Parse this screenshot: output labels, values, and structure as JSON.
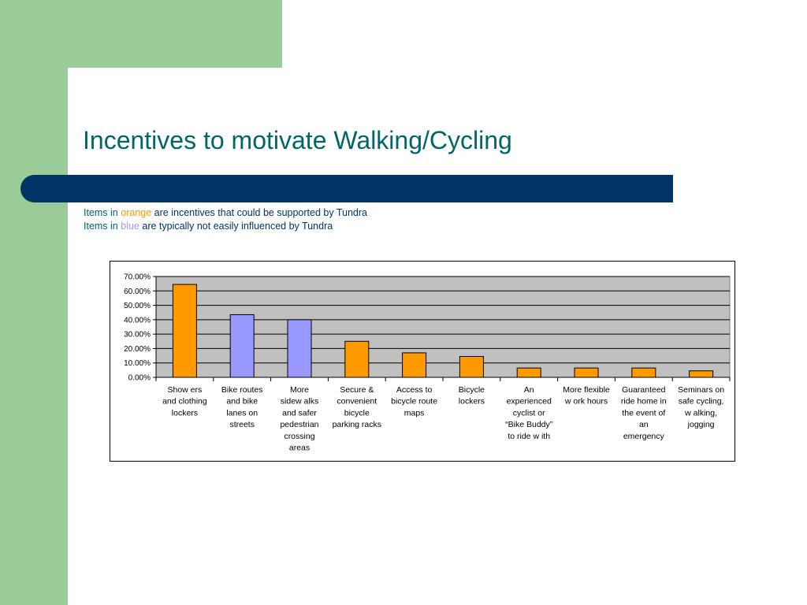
{
  "slide": {
    "title": "Incentives to motivate Walking/Cycling",
    "note1": {
      "pre": "Items in",
      "color_word": "orange",
      "post": "are incentives that could be supported by Tundra"
    },
    "note2": {
      "pre": "Items in",
      "color_word": "blue",
      "post": "are typically not easily influenced by Tundra"
    }
  },
  "colors": {
    "accent_green": "#99cc99",
    "band_navy": "#003366",
    "title_teal": "#006666",
    "orange": "#ff9900",
    "blue": "#9999ff",
    "plot_bg": "#c0c0c0"
  },
  "chart_data": {
    "type": "bar",
    "title": "",
    "xlabel": "",
    "ylabel": "",
    "ylim": [
      0,
      0.7
    ],
    "yticks": [
      "0.00%",
      "10.00%",
      "20.00%",
      "30.00%",
      "40.00%",
      "50.00%",
      "60.00%",
      "70.00%"
    ],
    "grid": true,
    "categories": [
      [
        "Show ers",
        "and clothing",
        "lockers"
      ],
      [
        "Bike routes",
        "and bike",
        "lanes on",
        "streets"
      ],
      [
        "More",
        "sidew alks",
        "and safer",
        "pedestrian",
        "crossing",
        "areas"
      ],
      [
        "Secure &",
        "convenient",
        "bicycle",
        "parking racks"
      ],
      [
        "Access to",
        "bicycle route",
        "maps"
      ],
      [
        "Bicycle",
        "lockers"
      ],
      [
        "An",
        "experienced",
        "cyclist or",
        "“Bike Buddy”",
        "to ride w ith"
      ],
      [
        "More flexible",
        "w ork hours"
      ],
      [
        "Guaranteed",
        "ride home in",
        "the event of",
        "an",
        "emergency"
      ],
      [
        "Seminars on",
        "safe cycling,",
        "w alking,",
        "jogging"
      ]
    ],
    "values": [
      0.645,
      0.435,
      0.4,
      0.25,
      0.17,
      0.145,
      0.065,
      0.065,
      0.065,
      0.045
    ],
    "bar_colors": [
      "orange",
      "blue",
      "blue",
      "orange",
      "orange",
      "orange",
      "orange",
      "orange",
      "orange",
      "orange"
    ]
  }
}
